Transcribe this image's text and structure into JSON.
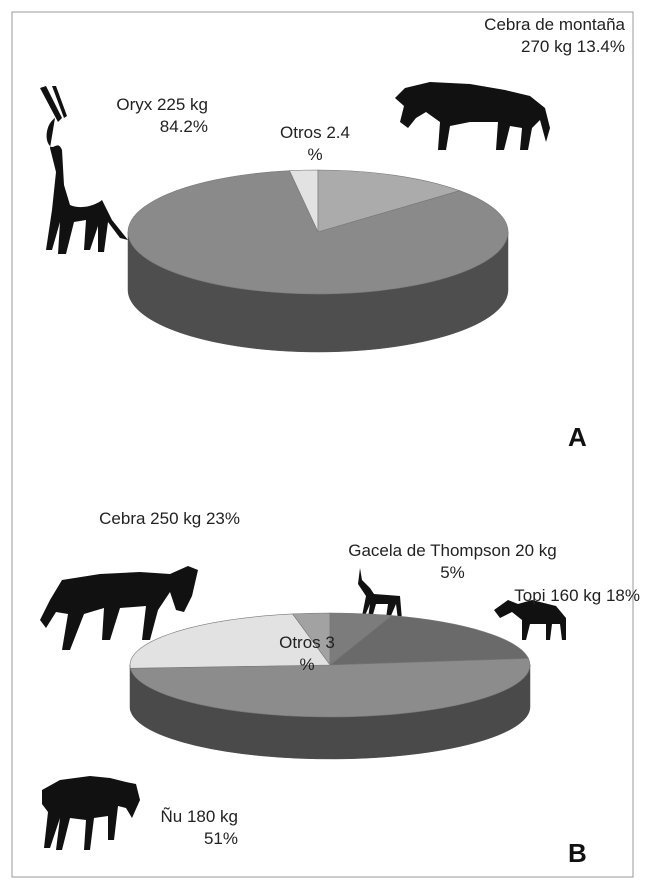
{
  "chart_data": [
    {
      "type": "pie",
      "title": "A",
      "categories": [
        "Otros",
        "Cebra de montaña 270 kg",
        "Oryx 225 kg"
      ],
      "values": [
        2.4,
        13.4,
        84.2
      ],
      "value_labels": [
        "2.4 %",
        "13.4%",
        "84.2%"
      ],
      "colors": [
        "#e2e2e2",
        "#ababab",
        "#8a8a8a"
      ],
      "side_color": "#4e4e4e"
    },
    {
      "type": "pie",
      "title": "B",
      "categories": [
        "Otros",
        "Gacela de Thompson 20 kg",
        "Topi 160 kg",
        "Ñu 180 kg",
        "Cebra 250 kg"
      ],
      "values": [
        3,
        5,
        18,
        51,
        23
      ],
      "value_labels": [
        "3 %",
        "5%",
        "18%",
        "51%",
        "23%"
      ],
      "colors": [
        "#a2a2a2",
        "#7c7c7c",
        "#6a6a6a",
        "#8c8c8c",
        "#e2e2e2"
      ],
      "side_color": "#4a4a4a"
    }
  ]
}
